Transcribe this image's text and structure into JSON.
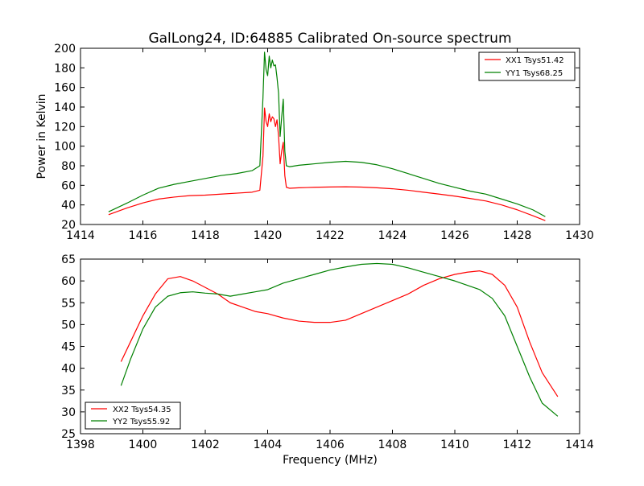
{
  "chart_data": [
    {
      "type": "line",
      "title": "GalLong24, ID:64885 Calibrated On-source spectrum",
      "xlabel": "",
      "ylabel": "Power in Kelvin",
      "xlim": [
        1414,
        1430
      ],
      "ylim": [
        20,
        200
      ],
      "xticks": [
        "1414",
        "1416",
        "1418",
        "1420",
        "1422",
        "1424",
        "1426",
        "1428",
        "1430"
      ],
      "yticks": [
        "20",
        "40",
        "60",
        "80",
        "100",
        "120",
        "140",
        "160",
        "180",
        "200"
      ],
      "grid": false,
      "legend_position": "top-right",
      "series": [
        {
          "name": "XX1 Tsys51.42",
          "color": "#ff0000",
          "x": [
            1414.9,
            1415.5,
            1416.0,
            1416.5,
            1417.0,
            1417.5,
            1418.0,
            1418.5,
            1419.0,
            1419.5,
            1419.75,
            1419.85,
            1419.9,
            1419.95,
            1420.0,
            1420.05,
            1420.1,
            1420.15,
            1420.2,
            1420.25,
            1420.3,
            1420.35,
            1420.4,
            1420.45,
            1420.5,
            1420.55,
            1420.6,
            1420.65,
            1420.7,
            1421.0,
            1421.5,
            1422.0,
            1422.5,
            1423.0,
            1423.5,
            1424.0,
            1424.5,
            1425.0,
            1425.5,
            1426.0,
            1426.5,
            1427.0,
            1427.5,
            1428.0,
            1428.5,
            1428.9
          ],
          "y": [
            30,
            37,
            42,
            46,
            48,
            49.5,
            50,
            51,
            52,
            53,
            55,
            90,
            139,
            125,
            120,
            133,
            125,
            130,
            128,
            120,
            127,
            110,
            82,
            95,
            104,
            70,
            58,
            57.5,
            57,
            57.5,
            58,
            58.3,
            58.5,
            58.2,
            57.5,
            56.5,
            55,
            53,
            51,
            49,
            46.5,
            44,
            40,
            35,
            29,
            24
          ]
        },
        {
          "name": "YY1 Tsys68.25",
          "color": "#008000",
          "x": [
            1414.9,
            1415.5,
            1416.0,
            1416.5,
            1417.0,
            1417.5,
            1418.0,
            1418.5,
            1419.0,
            1419.5,
            1419.75,
            1419.85,
            1419.9,
            1419.95,
            1420.0,
            1420.05,
            1420.1,
            1420.15,
            1420.2,
            1420.25,
            1420.3,
            1420.35,
            1420.4,
            1420.45,
            1420.5,
            1420.55,
            1420.6,
            1420.65,
            1420.7,
            1421.0,
            1421.5,
            1422.0,
            1422.5,
            1423.0,
            1423.5,
            1424.0,
            1424.5,
            1425.0,
            1425.5,
            1426.0,
            1426.5,
            1427.0,
            1427.5,
            1428.0,
            1428.5,
            1428.9
          ],
          "y": [
            33,
            42,
            50,
            57,
            61,
            64,
            67,
            70,
            72,
            75,
            80,
            150,
            196,
            178,
            172,
            192,
            180,
            188,
            182,
            183,
            170,
            154,
            110,
            130,
            148,
            95,
            80,
            79.5,
            79,
            80.5,
            82,
            83.5,
            84.5,
            83.5,
            81,
            77,
            72,
            67,
            62,
            58,
            54,
            51,
            46,
            41,
            35,
            28
          ]
        }
      ]
    },
    {
      "type": "line",
      "title": "",
      "xlabel": "Frequency (MHz)",
      "ylabel": "",
      "xlim": [
        1398,
        1414
      ],
      "ylim": [
        25,
        65
      ],
      "xticks": [
        "1398",
        "1400",
        "1402",
        "1404",
        "1406",
        "1408",
        "1410",
        "1412",
        "1414"
      ],
      "yticks": [
        "25",
        "30",
        "35",
        "40",
        "45",
        "50",
        "55",
        "60",
        "65"
      ],
      "grid": false,
      "legend_position": "bottom-left",
      "series": [
        {
          "name": "XX2 Tsys54.35",
          "color": "#ff0000",
          "x": [
            1399.3,
            1399.6,
            1400.0,
            1400.4,
            1400.8,
            1401.2,
            1401.6,
            1402.0,
            1402.4,
            1402.8,
            1403.2,
            1403.6,
            1404.0,
            1404.5,
            1405.0,
            1405.5,
            1406.0,
            1406.5,
            1407.0,
            1407.5,
            1408.0,
            1408.5,
            1409.0,
            1409.5,
            1410.0,
            1410.4,
            1410.8,
            1411.2,
            1411.6,
            1412.0,
            1412.4,
            1412.8,
            1413.3
          ],
          "y": [
            41.5,
            46,
            52,
            57,
            60.5,
            61,
            60,
            58.5,
            57,
            55,
            54,
            53,
            52.5,
            51.5,
            50.8,
            50.5,
            50.5,
            51,
            52.5,
            54,
            55.5,
            57,
            59,
            60.5,
            61.5,
            62,
            62.3,
            61.5,
            59,
            54,
            46,
            39,
            33.5
          ]
        },
        {
          "name": "YY2 Tsys55.92",
          "color": "#008000",
          "x": [
            1399.3,
            1399.6,
            1400.0,
            1400.4,
            1400.8,
            1401.2,
            1401.6,
            1402.0,
            1402.4,
            1402.8,
            1403.2,
            1403.6,
            1404.0,
            1404.5,
            1405.0,
            1405.5,
            1406.0,
            1406.5,
            1407.0,
            1407.5,
            1408.0,
            1408.5,
            1409.0,
            1409.5,
            1410.0,
            1410.4,
            1410.8,
            1411.2,
            1411.6,
            1412.0,
            1412.4,
            1412.8,
            1413.3
          ],
          "y": [
            36,
            42,
            49,
            54,
            56.5,
            57.3,
            57.5,
            57.2,
            57,
            56.5,
            57,
            57.5,
            58,
            59.5,
            60.5,
            61.5,
            62.5,
            63.2,
            63.8,
            64,
            63.8,
            63,
            62,
            61,
            60,
            59,
            58,
            56,
            52,
            45,
            38,
            32,
            29
          ]
        }
      ]
    }
  ]
}
